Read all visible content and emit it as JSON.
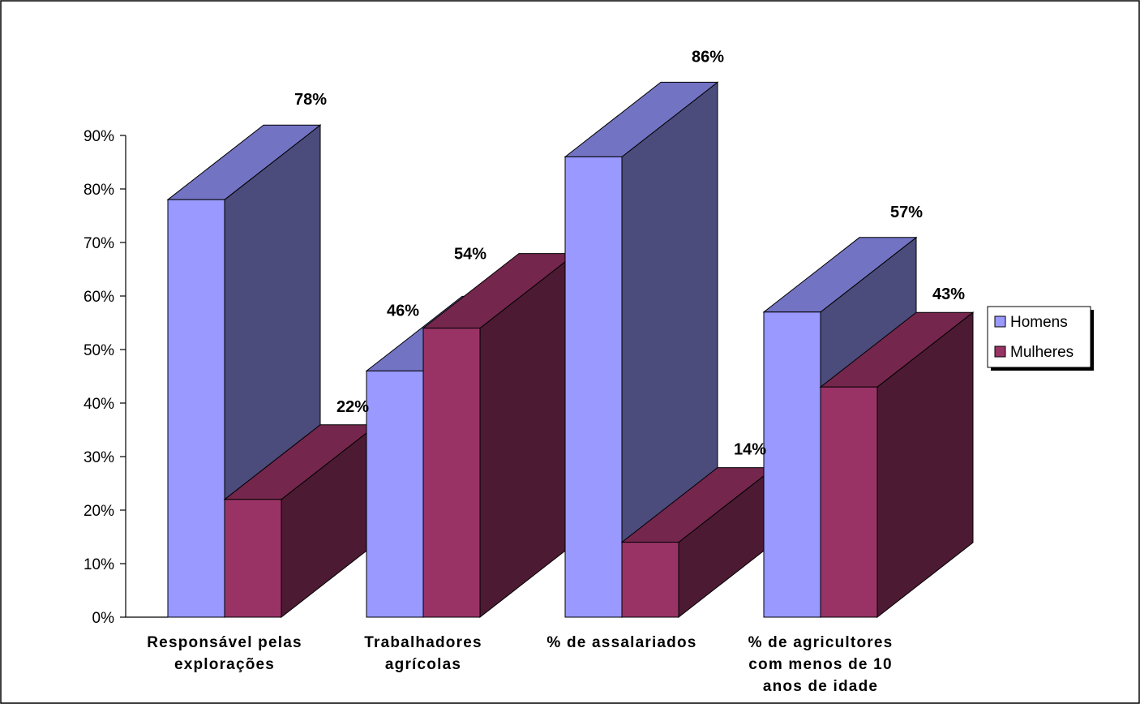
{
  "chart_data": {
    "type": "bar",
    "style": "3d-column",
    "categories": [
      [
        "Responsável pelas",
        "explorações"
      ],
      [
        "Trabalhadores",
        "agrícolas"
      ],
      [
        "% de assalariados"
      ],
      [
        "% de agricultores",
        "com menos de 10",
        "anos de idade"
      ]
    ],
    "series": [
      {
        "name": "Homens",
        "values": [
          78,
          46,
          86,
          57
        ],
        "labels": [
          "78%",
          "46%",
          "86%",
          "57%"
        ],
        "color": "#9999ff",
        "top_color": "#7373c4",
        "side_color": "#4b4b7c"
      },
      {
        "name": "Mulheres",
        "values": [
          22,
          54,
          14,
          43
        ],
        "labels": [
          "22%",
          "54%",
          "14%",
          "43%"
        ],
        "color": "#993366",
        "top_color": "#74264c",
        "side_color": "#4d1a33"
      }
    ],
    "ylim": [
      0,
      90
    ],
    "yticks": [
      "0%",
      "10%",
      "20%",
      "30%",
      "40%",
      "50%",
      "60%",
      "70%",
      "80%",
      "90%"
    ],
    "legend_position": "right",
    "grid": false
  }
}
